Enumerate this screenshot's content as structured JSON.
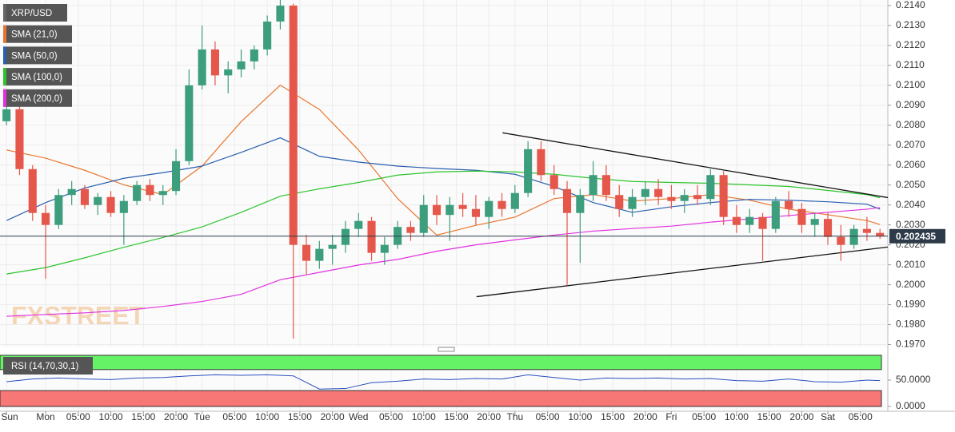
{
  "chart_data": {
    "type": "candlestick",
    "name": "XRP/USD",
    "up_color": "#3d9e7e",
    "down_color": "#e5574a",
    "watermark": "FXSTREET",
    "x": [
      -6,
      -4,
      -2,
      0,
      2,
      4,
      6,
      8,
      10,
      12,
      14,
      16,
      18,
      20,
      22,
      24,
      26,
      28,
      30,
      32,
      34,
      36,
      38,
      40,
      42,
      44,
      46,
      48,
      50,
      52,
      54,
      56,
      58,
      60,
      62,
      64,
      66,
      68,
      70,
      72,
      74,
      76,
      78,
      80,
      82,
      84,
      86,
      88,
      90,
      92,
      94,
      96,
      98,
      100,
      102,
      104,
      106,
      108,
      110,
      112,
      114,
      116,
      118,
      120,
      122,
      124,
      126,
      128
    ],
    "open": [
      0.2082,
      0.2088,
      0.2058,
      0.2036,
      0.203,
      0.2045,
      0.2048,
      0.204,
      0.2044,
      0.2036,
      0.2042,
      0.205,
      0.2045,
      0.2047,
      0.2062,
      0.21,
      0.2118,
      0.2105,
      0.2108,
      0.2112,
      0.2118,
      0.2132,
      0.214,
      0.202,
      0.2012,
      0.2018,
      0.202,
      0.2028,
      0.2032,
      0.2016,
      0.202,
      0.2029,
      0.2026,
      0.204,
      0.2035,
      0.204,
      0.2038,
      0.2034,
      0.2042,
      0.2038,
      0.2046,
      0.2068,
      0.2055,
      0.2048,
      0.2036,
      0.2045,
      0.2055,
      0.2045,
      0.2038,
      0.2044,
      0.2048,
      0.2044,
      0.2042,
      0.2045,
      0.2043,
      0.2055,
      0.2034,
      0.203,
      0.2034,
      0.2028,
      0.2042,
      0.2038,
      0.203,
      0.2033,
      0.2024,
      0.202,
      0.2028,
      0.2026
    ],
    "high": [
      0.209,
      0.209,
      0.206,
      0.204,
      0.2048,
      0.2052,
      0.205,
      0.2046,
      0.2047,
      0.2045,
      0.2052,
      0.2053,
      0.205,
      0.2068,
      0.2108,
      0.213,
      0.2122,
      0.2112,
      0.2118,
      0.212,
      0.2135,
      0.2145,
      0.2141,
      0.2025,
      0.2022,
      0.2025,
      0.2032,
      0.2036,
      0.2034,
      0.2024,
      0.2032,
      0.2032,
      0.2045,
      0.2045,
      0.2044,
      0.2046,
      0.2045,
      0.2044,
      0.2046,
      0.205,
      0.2072,
      0.2072,
      0.206,
      0.2052,
      0.2048,
      0.2062,
      0.206,
      0.205,
      0.2048,
      0.2052,
      0.2053,
      0.205,
      0.2048,
      0.205,
      0.2058,
      0.2057,
      0.204,
      0.2038,
      0.2036,
      0.2044,
      0.2047,
      0.2041,
      0.2036,
      0.2036,
      0.203,
      0.203,
      0.2034,
      0.2028
    ],
    "low": [
      0.208,
      0.2055,
      0.2032,
      0.2003,
      0.2028,
      0.204,
      0.2038,
      0.2035,
      0.2034,
      0.202,
      0.204,
      0.2042,
      0.204,
      0.2045,
      0.206,
      0.2098,
      0.21,
      0.2096,
      0.2104,
      0.2108,
      0.2115,
      0.2128,
      0.1973,
      0.2005,
      0.2008,
      0.201,
      0.2016,
      0.2024,
      0.2012,
      0.201,
      0.2018,
      0.2022,
      0.2024,
      0.203,
      0.2022,
      0.2034,
      0.203,
      0.2028,
      0.2034,
      0.2036,
      0.2044,
      0.2052,
      0.2045,
      0.2,
      0.2011,
      0.2042,
      0.2042,
      0.2034,
      0.2034,
      0.204,
      0.204,
      0.2038,
      0.2036,
      0.204,
      0.204,
      0.203,
      0.2026,
      0.2026,
      0.2012,
      0.2026,
      0.2034,
      0.2026,
      0.2024,
      0.202,
      0.2012,
      0.2018,
      0.2022,
      0.2023
    ],
    "close": [
      0.2088,
      0.2058,
      0.2036,
      0.203,
      0.2045,
      0.2048,
      0.204,
      0.2044,
      0.2036,
      0.2042,
      0.205,
      0.2045,
      0.2047,
      0.2062,
      0.21,
      0.2118,
      0.2105,
      0.2108,
      0.2112,
      0.2118,
      0.2132,
      0.214,
      0.202,
      0.2012,
      0.2018,
      0.202,
      0.2028,
      0.2032,
      0.2016,
      0.202,
      0.2029,
      0.2026,
      0.204,
      0.2035,
      0.204,
      0.2038,
      0.2034,
      0.2042,
      0.2038,
      0.2046,
      0.2068,
      0.2055,
      0.2048,
      0.2036,
      0.2045,
      0.2055,
      0.2045,
      0.2038,
      0.2044,
      0.2048,
      0.2044,
      0.2042,
      0.2045,
      0.2043,
      0.2055,
      0.2034,
      0.203,
      0.2034,
      0.2028,
      0.2042,
      0.2038,
      0.203,
      0.2033,
      0.2024,
      0.202,
      0.2028,
      0.2026,
      0.202435
    ],
    "overlay_x": [
      -6,
      0,
      6,
      12,
      18,
      24,
      30,
      36,
      42,
      48,
      54,
      60,
      66,
      72,
      78,
      84,
      90,
      96,
      102,
      108,
      114,
      120,
      126,
      128
    ],
    "overlays": [
      {
        "name": "SMA (21,0)",
        "color": "#e8772e",
        "values": [
          0.20676,
          0.20635,
          0.20574,
          0.20501,
          0.20452,
          0.20595,
          0.20818,
          0.21001,
          0.20879,
          0.20676,
          0.20432,
          0.20249,
          0.20298,
          0.20339,
          0.20432,
          0.20452,
          0.2042,
          0.20432,
          0.20452,
          0.20424,
          0.20379,
          0.20351,
          0.20322,
          0.20302
        ]
      },
      {
        "name": "SMA (50,0)",
        "color": "#2a5fb0",
        "values": [
          0.20322,
          0.20412,
          0.20485,
          0.20534,
          0.20562,
          0.20595,
          0.20664,
          0.20737,
          0.20644,
          0.20615,
          0.20595,
          0.20583,
          0.20574,
          0.20554,
          0.20493,
          0.20412,
          0.20363,
          0.20391,
          0.20412,
          0.20428,
          0.20424,
          0.20416,
          0.20404,
          0.20379
        ]
      },
      {
        "name": "SMA (100,0)",
        "color": "#2ec42e",
        "values": [
          0.20054,
          0.20086,
          0.20135,
          0.20188,
          0.20237,
          0.2029,
          0.20363,
          0.20444,
          0.20481,
          0.20513,
          0.2055,
          0.20566,
          0.2057,
          0.20566,
          0.20554,
          0.20534,
          0.20518,
          0.20513,
          0.20509,
          0.20501,
          0.20493,
          0.20473,
          0.20452,
          0.20436
        ]
      },
      {
        "name": "SMA (200,0)",
        "color": "#e030e0",
        "values": [
          0.19842,
          0.19851,
          0.19859,
          0.19871,
          0.19891,
          0.19916,
          0.19952,
          0.20025,
          0.20062,
          0.20099,
          0.20127,
          0.20168,
          0.202,
          0.20225,
          0.20249,
          0.20269,
          0.20282,
          0.20294,
          0.20314,
          0.2033,
          0.20347,
          0.20363,
          0.20379,
          0.20387
        ]
      }
    ],
    "trendlines": [
      {
        "color": "#111111",
        "x": [
          70.1,
          129.2
        ],
        "y": [
          0.20762,
          0.20437
        ]
      },
      {
        "color": "#111111",
        "x": [
          66.1,
          129.2
        ],
        "y": [
          0.1994,
          0.20189
        ]
      }
    ],
    "xlim": [
      -7,
      129.2
    ],
    "ylim": [
      0.19686,
      0.21428
    ],
    "xticks": [
      {
        "value": -6,
        "label": "Sun"
      },
      {
        "value": 0,
        "label": "Mon"
      },
      {
        "value": 5,
        "label": "05:00"
      },
      {
        "value": 10,
        "label": "10:00"
      },
      {
        "value": 15,
        "label": "15:00"
      },
      {
        "value": 20,
        "label": "20:00"
      },
      {
        "value": 24,
        "label": "Tue"
      },
      {
        "value": 29,
        "label": "05:00"
      },
      {
        "value": 34,
        "label": "10:00"
      },
      {
        "value": 39,
        "label": "15:00"
      },
      {
        "value": 44,
        "label": "20:00"
      },
      {
        "value": 48,
        "label": "Wed"
      },
      {
        "value": 53,
        "label": "05:00"
      },
      {
        "value": 58,
        "label": "10:00"
      },
      {
        "value": 63,
        "label": "15:00"
      },
      {
        "value": 68,
        "label": "20:00"
      },
      {
        "value": 72,
        "label": "Thu"
      },
      {
        "value": 77,
        "label": "05:00"
      },
      {
        "value": 82,
        "label": "10:00"
      },
      {
        "value": 87,
        "label": "15:00"
      },
      {
        "value": 92,
        "label": "20:00"
      },
      {
        "value": 96,
        "label": "Fri"
      },
      {
        "value": 101,
        "label": "05:00"
      },
      {
        "value": 106,
        "label": "10:00"
      },
      {
        "value": 111,
        "label": "15:00"
      },
      {
        "value": 116,
        "label": "20:00"
      },
      {
        "value": 120,
        "label": "Sat"
      },
      {
        "value": 125,
        "label": "05:00"
      }
    ],
    "yticks": [
      {
        "value": 0.214,
        "label": "0.2140"
      },
      {
        "value": 0.213,
        "label": "0.2130"
      },
      {
        "value": 0.212,
        "label": "0.2120"
      },
      {
        "value": 0.211,
        "label": "0.2110"
      },
      {
        "value": 0.21,
        "label": "0.2100"
      },
      {
        "value": 0.209,
        "label": "0.2090"
      },
      {
        "value": 0.208,
        "label": "0.2080"
      },
      {
        "value": 0.207,
        "label": "0.2070"
      },
      {
        "value": 0.206,
        "label": "0.2060"
      },
      {
        "value": 0.205,
        "label": "0.2050"
      },
      {
        "value": 0.204,
        "label": "0.2040"
      },
      {
        "value": 0.203,
        "label": "0.2030"
      },
      {
        "value": 0.202,
        "label": "0.2020"
      },
      {
        "value": 0.201,
        "label": "0.2010"
      },
      {
        "value": 0.2,
        "label": "0.2000"
      },
      {
        "value": 0.199,
        "label": "0.1990"
      },
      {
        "value": 0.198,
        "label": "0.1980"
      },
      {
        "value": 0.197,
        "label": "0.1970"
      }
    ],
    "grid": true,
    "rsi": {
      "label": "RSI (14,70,30,1)",
      "color": "#2a4fc0",
      "upper": 70,
      "lower": 30,
      "upper_color": "#66f266",
      "lower_color": "#f77777",
      "x": [
        -6,
        -2,
        2,
        6,
        10,
        14,
        18,
        22,
        26,
        30,
        34,
        38,
        42,
        46,
        50,
        54,
        58,
        62,
        66,
        70,
        74,
        78,
        82,
        86,
        90,
        94,
        98,
        102,
        106,
        110,
        114,
        118,
        122,
        126,
        128
      ],
      "values": [
        47,
        52,
        54,
        52,
        51,
        54,
        55,
        58,
        60,
        59,
        60,
        58,
        33,
        34,
        45,
        48,
        52,
        51,
        53,
        52,
        60,
        55,
        50,
        54,
        53,
        54,
        52,
        53,
        49,
        48,
        52,
        47,
        46,
        50,
        49
      ],
      "ylim": [
        0,
        100
      ],
      "yticks": [
        {
          "value": 50,
          "label": "50.0000"
        },
        {
          "value": 0,
          "label": "0.0000"
        }
      ]
    }
  }
}
